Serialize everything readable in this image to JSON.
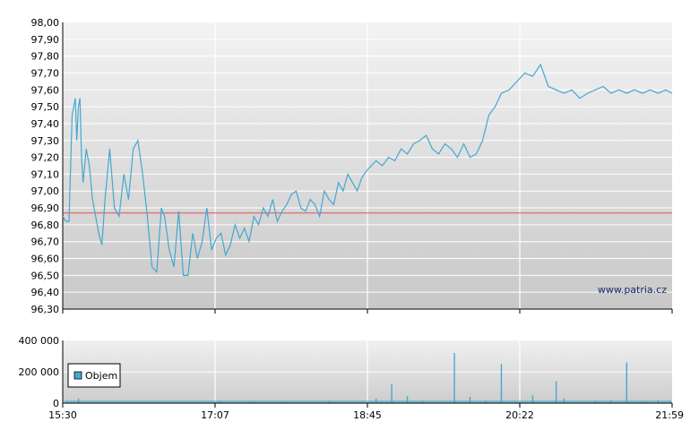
{
  "chart_data": [
    {
      "type": "line",
      "ylim": [
        96.3,
        98.0
      ],
      "y_ticks": [
        "98,00",
        "97,90",
        "97,80",
        "97,70",
        "97,60",
        "97,50",
        "97,40",
        "97,30",
        "97,20",
        "97,10",
        "97,00",
        "96,90",
        "96,80",
        "96,70",
        "96,60",
        "96,50",
        "96,40",
        "96,30"
      ],
      "x_ticks": [
        "15:30",
        "17:07",
        "18:45",
        "20:22",
        "21:59"
      ],
      "reference_line": 96.87,
      "grid": true,
      "watermark": "www.patria.cz",
      "colors": {
        "line": "#44a8d0",
        "reference": "#e05050",
        "grid": "#ffffff",
        "bg_top": "#f0f0f0",
        "bg_bottom": "#c6c6c6"
      },
      "series": [
        {
          "x_minutes": [
            0,
            2,
            4,
            6,
            8,
            9,
            10,
            11,
            12,
            13,
            15,
            17,
            19,
            21,
            23,
            25,
            27,
            30,
            33,
            36,
            39,
            42,
            45,
            48,
            51,
            54,
            57,
            60,
            63,
            65,
            68,
            71,
            74,
            77,
            80,
            83,
            86,
            89,
            92,
            95,
            98,
            101,
            104,
            107,
            110,
            113,
            116,
            119,
            122,
            125,
            128,
            131,
            134,
            137,
            140,
            143,
            146,
            149,
            152,
            155,
            158,
            161,
            164,
            167,
            170,
            173,
            176,
            179,
            182,
            185,
            188,
            191,
            194,
            197,
            200,
            204,
            208,
            212,
            216,
            220,
            224,
            228,
            232,
            236,
            240,
            244,
            248,
            252,
            256,
            260,
            264,
            268,
            272,
            276,
            280,
            285,
            290,
            295,
            300,
            305,
            310,
            315,
            320,
            325,
            330,
            335,
            340,
            345,
            350,
            355,
            360,
            365,
            370,
            375,
            380,
            385,
            389
          ],
          "values": [
            96.85,
            96.82,
            96.82,
            97.45,
            97.55,
            97.3,
            97.5,
            97.55,
            97.2,
            97.05,
            97.25,
            97.15,
            96.95,
            96.85,
            96.75,
            96.68,
            96.95,
            97.25,
            96.9,
            96.85,
            97.1,
            96.95,
            97.25,
            97.3,
            97.1,
            96.85,
            96.55,
            96.52,
            96.9,
            96.85,
            96.65,
            96.55,
            96.88,
            96.5,
            96.5,
            96.75,
            96.6,
            96.7,
            96.9,
            96.65,
            96.72,
            96.75,
            96.62,
            96.68,
            96.8,
            96.72,
            96.78,
            96.7,
            96.85,
            96.8,
            96.9,
            96.85,
            96.95,
            96.82,
            96.88,
            96.92,
            96.98,
            97.0,
            96.9,
            96.88,
            96.95,
            96.92,
            96.85,
            97.0,
            96.95,
            96.92,
            97.05,
            97.0,
            97.1,
            97.05,
            97.0,
            97.08,
            97.12,
            97.15,
            97.18,
            97.15,
            97.2,
            97.18,
            97.25,
            97.22,
            97.28,
            97.3,
            97.33,
            97.25,
            97.22,
            97.28,
            97.25,
            97.2,
            97.28,
            97.2,
            97.22,
            97.3,
            97.45,
            97.5,
            97.58,
            97.6,
            97.65,
            97.7,
            97.68,
            97.75,
            97.62,
            97.6,
            97.58,
            97.6,
            97.55,
            97.58,
            97.6,
            97.62,
            97.58,
            97.6,
            97.58,
            97.6,
            97.58,
            97.6,
            97.58,
            97.6,
            97.58
          ]
        }
      ]
    },
    {
      "type": "bar",
      "ylim": [
        0,
        400000
      ],
      "y_ticks": [
        "400 000",
        "200 000",
        "0"
      ],
      "x_ticks": [
        "15:30",
        "17:07",
        "18:45",
        "20:22",
        "21:59"
      ],
      "legend": {
        "label": "Objem",
        "placement": "left"
      },
      "colors": {
        "bar": "#44a8d0"
      },
      "series": [
        {
          "name": "Objem",
          "x_minutes": [
            10,
            100,
            120,
            140,
            170,
            200,
            210,
            220,
            230,
            250,
            260,
            270,
            280,
            300,
            315,
            320,
            340,
            350,
            360,
            370,
            380,
            388
          ],
          "values": [
            30000,
            15000,
            10000,
            8000,
            12000,
            30000,
            120000,
            45000,
            10000,
            320000,
            40000,
            15000,
            250000,
            50000,
            140000,
            30000,
            15000,
            20000,
            260000,
            10000,
            20000,
            15000
          ]
        }
      ]
    }
  ]
}
